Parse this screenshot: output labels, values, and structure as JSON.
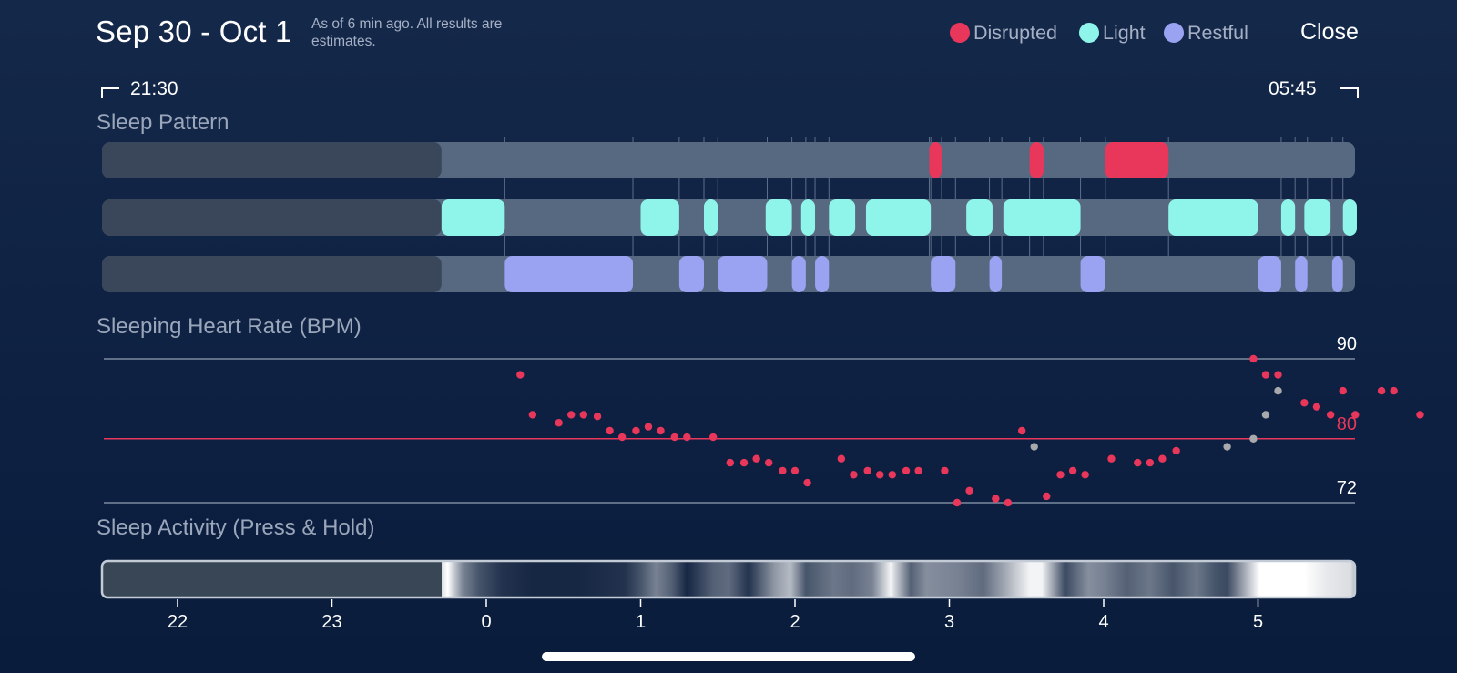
{
  "header": {
    "date_range": "Sep 30 - Oct 1",
    "as_of_note": "As of 6 min ago. All results are estimates.",
    "close_label": "Close"
  },
  "legend": [
    {
      "label": "Disrupted",
      "color": "#e8375a"
    },
    {
      "label": "Light",
      "color": "#8ff5ea"
    },
    {
      "label": "Restful",
      "color": "#9aa2f2"
    }
  ],
  "time_range": {
    "start": "21:30",
    "end": "05:45"
  },
  "sections": {
    "sleep_pattern": "Sleep Pattern",
    "heart_rate": "Sleeping Heart Rate (BPM)",
    "activity": "Sleep Activity (Press & Hold)"
  },
  "colors": {
    "disrupted": "#e8375a",
    "light": "#8ff5ea",
    "restful": "#9aa2f2",
    "track": "#566981",
    "track_dim": "#3a475a",
    "low_point": "#a8a9ad"
  },
  "chart_data": {
    "type": "mixed",
    "time_axis_hours": [
      21.5,
      29.75
    ],
    "tick_labels": [
      "22",
      "23",
      "0",
      "1",
      "2",
      "3",
      "4",
      "5"
    ],
    "sleep_pattern": {
      "no_data_until": 23.71,
      "disrupted": [
        [
          26.87,
          26.95
        ],
        [
          27.52,
          27.61
        ],
        [
          28.01,
          28.42
        ]
      ],
      "light": [
        [
          23.71,
          24.12
        ],
        [
          25.0,
          25.25
        ],
        [
          25.41,
          25.5
        ],
        [
          25.81,
          25.98
        ],
        [
          26.04,
          26.13
        ],
        [
          26.22,
          26.39
        ],
        [
          26.46,
          26.88
        ],
        [
          27.11,
          27.28
        ],
        [
          27.35,
          27.85
        ],
        [
          28.42,
          29.0
        ],
        [
          29.15,
          29.24
        ],
        [
          29.3,
          29.47
        ],
        [
          29.55,
          29.64
        ]
      ],
      "restful": [
        [
          24.12,
          24.95
        ],
        [
          25.25,
          25.41
        ],
        [
          25.5,
          25.82
        ],
        [
          25.98,
          26.07
        ],
        [
          26.13,
          26.22
        ],
        [
          26.88,
          27.04
        ],
        [
          27.26,
          27.34
        ],
        [
          27.85,
          28.01
        ],
        [
          29.0,
          29.15
        ],
        [
          29.24,
          29.32
        ],
        [
          29.48,
          29.55
        ]
      ]
    },
    "heart_rate": {
      "title": "Sleeping Heart Rate (BPM)",
      "unit": "BPM",
      "y_ticks": [
        90,
        80,
        72
      ],
      "average": 80,
      "points": [
        [
          24.22,
          88
        ],
        [
          24.3,
          83
        ],
        [
          24.47,
          82
        ],
        [
          24.55,
          83
        ],
        [
          24.63,
          83
        ],
        [
          24.72,
          82.8
        ],
        [
          24.8,
          81
        ],
        [
          24.88,
          80.2
        ],
        [
          24.97,
          81
        ],
        [
          25.05,
          81.5
        ],
        [
          25.13,
          81
        ],
        [
          25.22,
          80.2
        ],
        [
          25.3,
          80.2
        ],
        [
          25.47,
          80.2
        ],
        [
          25.58,
          77
        ],
        [
          25.67,
          77
        ],
        [
          25.75,
          77.5
        ],
        [
          25.83,
          77
        ],
        [
          25.92,
          76
        ],
        [
          26.0,
          76
        ],
        [
          26.08,
          74.5
        ],
        [
          26.3,
          77.5
        ],
        [
          26.38,
          75.5
        ],
        [
          26.47,
          76
        ],
        [
          26.55,
          75.5
        ],
        [
          26.63,
          75.5
        ],
        [
          26.72,
          76
        ],
        [
          26.8,
          76
        ],
        [
          26.97,
          76
        ],
        [
          27.05,
          72
        ],
        [
          27.13,
          73.5
        ],
        [
          27.3,
          72.5
        ],
        [
          27.38,
          72
        ],
        [
          27.47,
          81
        ],
        [
          27.63,
          72.8
        ],
        [
          27.72,
          75.5
        ],
        [
          27.8,
          76
        ],
        [
          27.88,
          75.5
        ],
        [
          28.05,
          77.5
        ],
        [
          28.22,
          77
        ],
        [
          28.3,
          77
        ],
        [
          28.38,
          77.5
        ],
        [
          28.47,
          78.5
        ],
        [
          28.97,
          90
        ],
        [
          29.05,
          88
        ],
        [
          29.13,
          88
        ],
        [
          29.3,
          84.5
        ],
        [
          29.38,
          84
        ],
        [
          29.47,
          83
        ],
        [
          29.55,
          86
        ],
        [
          29.63,
          83
        ],
        [
          29.8,
          86
        ],
        [
          29.88,
          86
        ],
        [
          30.05,
          83
        ]
      ],
      "low_points": [
        [
          27.55,
          79
        ],
        [
          28.8,
          79
        ],
        [
          28.97,
          80
        ],
        [
          29.05,
          83
        ],
        [
          29.13,
          86
        ]
      ]
    },
    "activity": {
      "type": "heatmap",
      "levels": [
        [
          23.71,
          0.85
        ],
        [
          23.75,
          1.0
        ],
        [
          23.85,
          0.45
        ],
        [
          23.95,
          0.25
        ],
        [
          24.1,
          0.1
        ],
        [
          24.3,
          0.05
        ],
        [
          24.6,
          0.05
        ],
        [
          24.9,
          0.1
        ],
        [
          25.0,
          0.25
        ],
        [
          25.1,
          0.45
        ],
        [
          25.2,
          0.3
        ],
        [
          25.3,
          0.05
        ],
        [
          25.47,
          0.3
        ],
        [
          25.57,
          0.35
        ],
        [
          25.7,
          0.1
        ],
        [
          25.87,
          0.55
        ],
        [
          25.97,
          0.7
        ],
        [
          26.07,
          0.25
        ],
        [
          26.25,
          0.4
        ],
        [
          26.37,
          0.35
        ],
        [
          26.5,
          0.45
        ],
        [
          26.62,
          0.95
        ],
        [
          26.75,
          0.3
        ],
        [
          26.85,
          0.5
        ],
        [
          27.05,
          0.45
        ],
        [
          27.22,
          0.35
        ],
        [
          27.35,
          0.6
        ],
        [
          27.52,
          0.95
        ],
        [
          27.6,
          0.95
        ],
        [
          27.75,
          0.2
        ],
        [
          27.9,
          0.5
        ],
        [
          28.0,
          0.45
        ],
        [
          28.15,
          0.3
        ],
        [
          28.3,
          0.4
        ],
        [
          28.45,
          0.25
        ],
        [
          28.6,
          0.4
        ],
        [
          28.72,
          0.25
        ],
        [
          28.8,
          0.2
        ],
        [
          29.01,
          1.0
        ],
        [
          29.3,
          1.0
        ],
        [
          29.45,
          0.9
        ],
        [
          29.6,
          0.85
        ],
        [
          29.7,
          0.7
        ],
        [
          29.8,
          0.45
        ],
        [
          29.9,
          0.25
        ],
        [
          30.0,
          0.5
        ],
        [
          30.15,
          0.3
        ]
      ]
    }
  }
}
